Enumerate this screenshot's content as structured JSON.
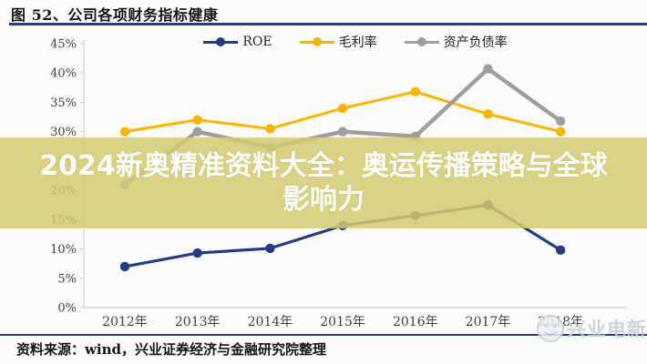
{
  "header": {
    "title": "图 52、公司各项财务指标健康"
  },
  "overlay_banner": {
    "text": "2024新奥精准资料大全：奥运传播策略与全球\n影响力",
    "bg_color": "#d3cb71",
    "text_color": "#ffffff"
  },
  "footer": {
    "source_text": "资料来源：wind，兴业证券经济与金融研究院整理"
  },
  "watermark": {
    "icon": "wechat-logo-icon",
    "text": "兴业电新"
  },
  "chart_data": {
    "type": "line",
    "title": "",
    "xlabel": "",
    "ylabel": "",
    "categories": [
      "2012年",
      "2013年",
      "2014年",
      "2015年",
      "2016年",
      "2017年",
      "2018年"
    ],
    "series": [
      {
        "name": "ROE",
        "color": "#283a80",
        "values": [
          7.0,
          9.3,
          10.1,
          14.0,
          15.7,
          17.5,
          9.8
        ]
      },
      {
        "name": "毛利率",
        "color": "#f7b500",
        "values": [
          30.0,
          32.0,
          30.5,
          34.0,
          36.8,
          33.0,
          30.0
        ]
      },
      {
        "name": "资产负债率",
        "color": "#9e9e9e",
        "values": [
          21.0,
          30.0,
          27.3,
          30.0,
          29.2,
          40.7,
          31.8
        ]
      }
    ],
    "ylim": [
      0,
      45
    ],
    "ytick_step": 5,
    "ytick_format": "percent",
    "grid": false,
    "legend_position": "top",
    "axis_color": "#c9c9c9",
    "tick_label_color": "#3f3f3f"
  }
}
